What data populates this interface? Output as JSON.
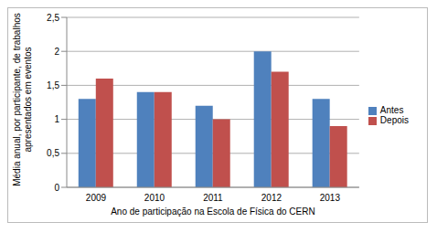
{
  "chart_data": {
    "type": "bar",
    "categories": [
      "2009",
      "2010",
      "2011",
      "2012",
      "2013"
    ],
    "series": [
      {
        "name": "Antes",
        "color": "#4f81bd",
        "values": [
          1.3,
          1.4,
          1.2,
          2.0,
          1.3
        ]
      },
      {
        "name": "Depois",
        "color": "#c0504d",
        "values": [
          1.6,
          1.4,
          1.0,
          1.7,
          0.9
        ]
      }
    ],
    "x_label": "Ano de participação  na Escola de Física do CERN",
    "y_label": "Média anual, por participante, de trabalhos apresentados em eventos",
    "ylim": [
      0,
      2.5
    ],
    "yticks": [
      0,
      {
        "value": 0.5,
        "label": "0,5"
      },
      1,
      {
        "value": 1.5,
        "label": "1,5"
      },
      2,
      {
        "value": 2.5,
        "label": "2,5"
      }
    ],
    "grid": true,
    "legend": "right"
  }
}
